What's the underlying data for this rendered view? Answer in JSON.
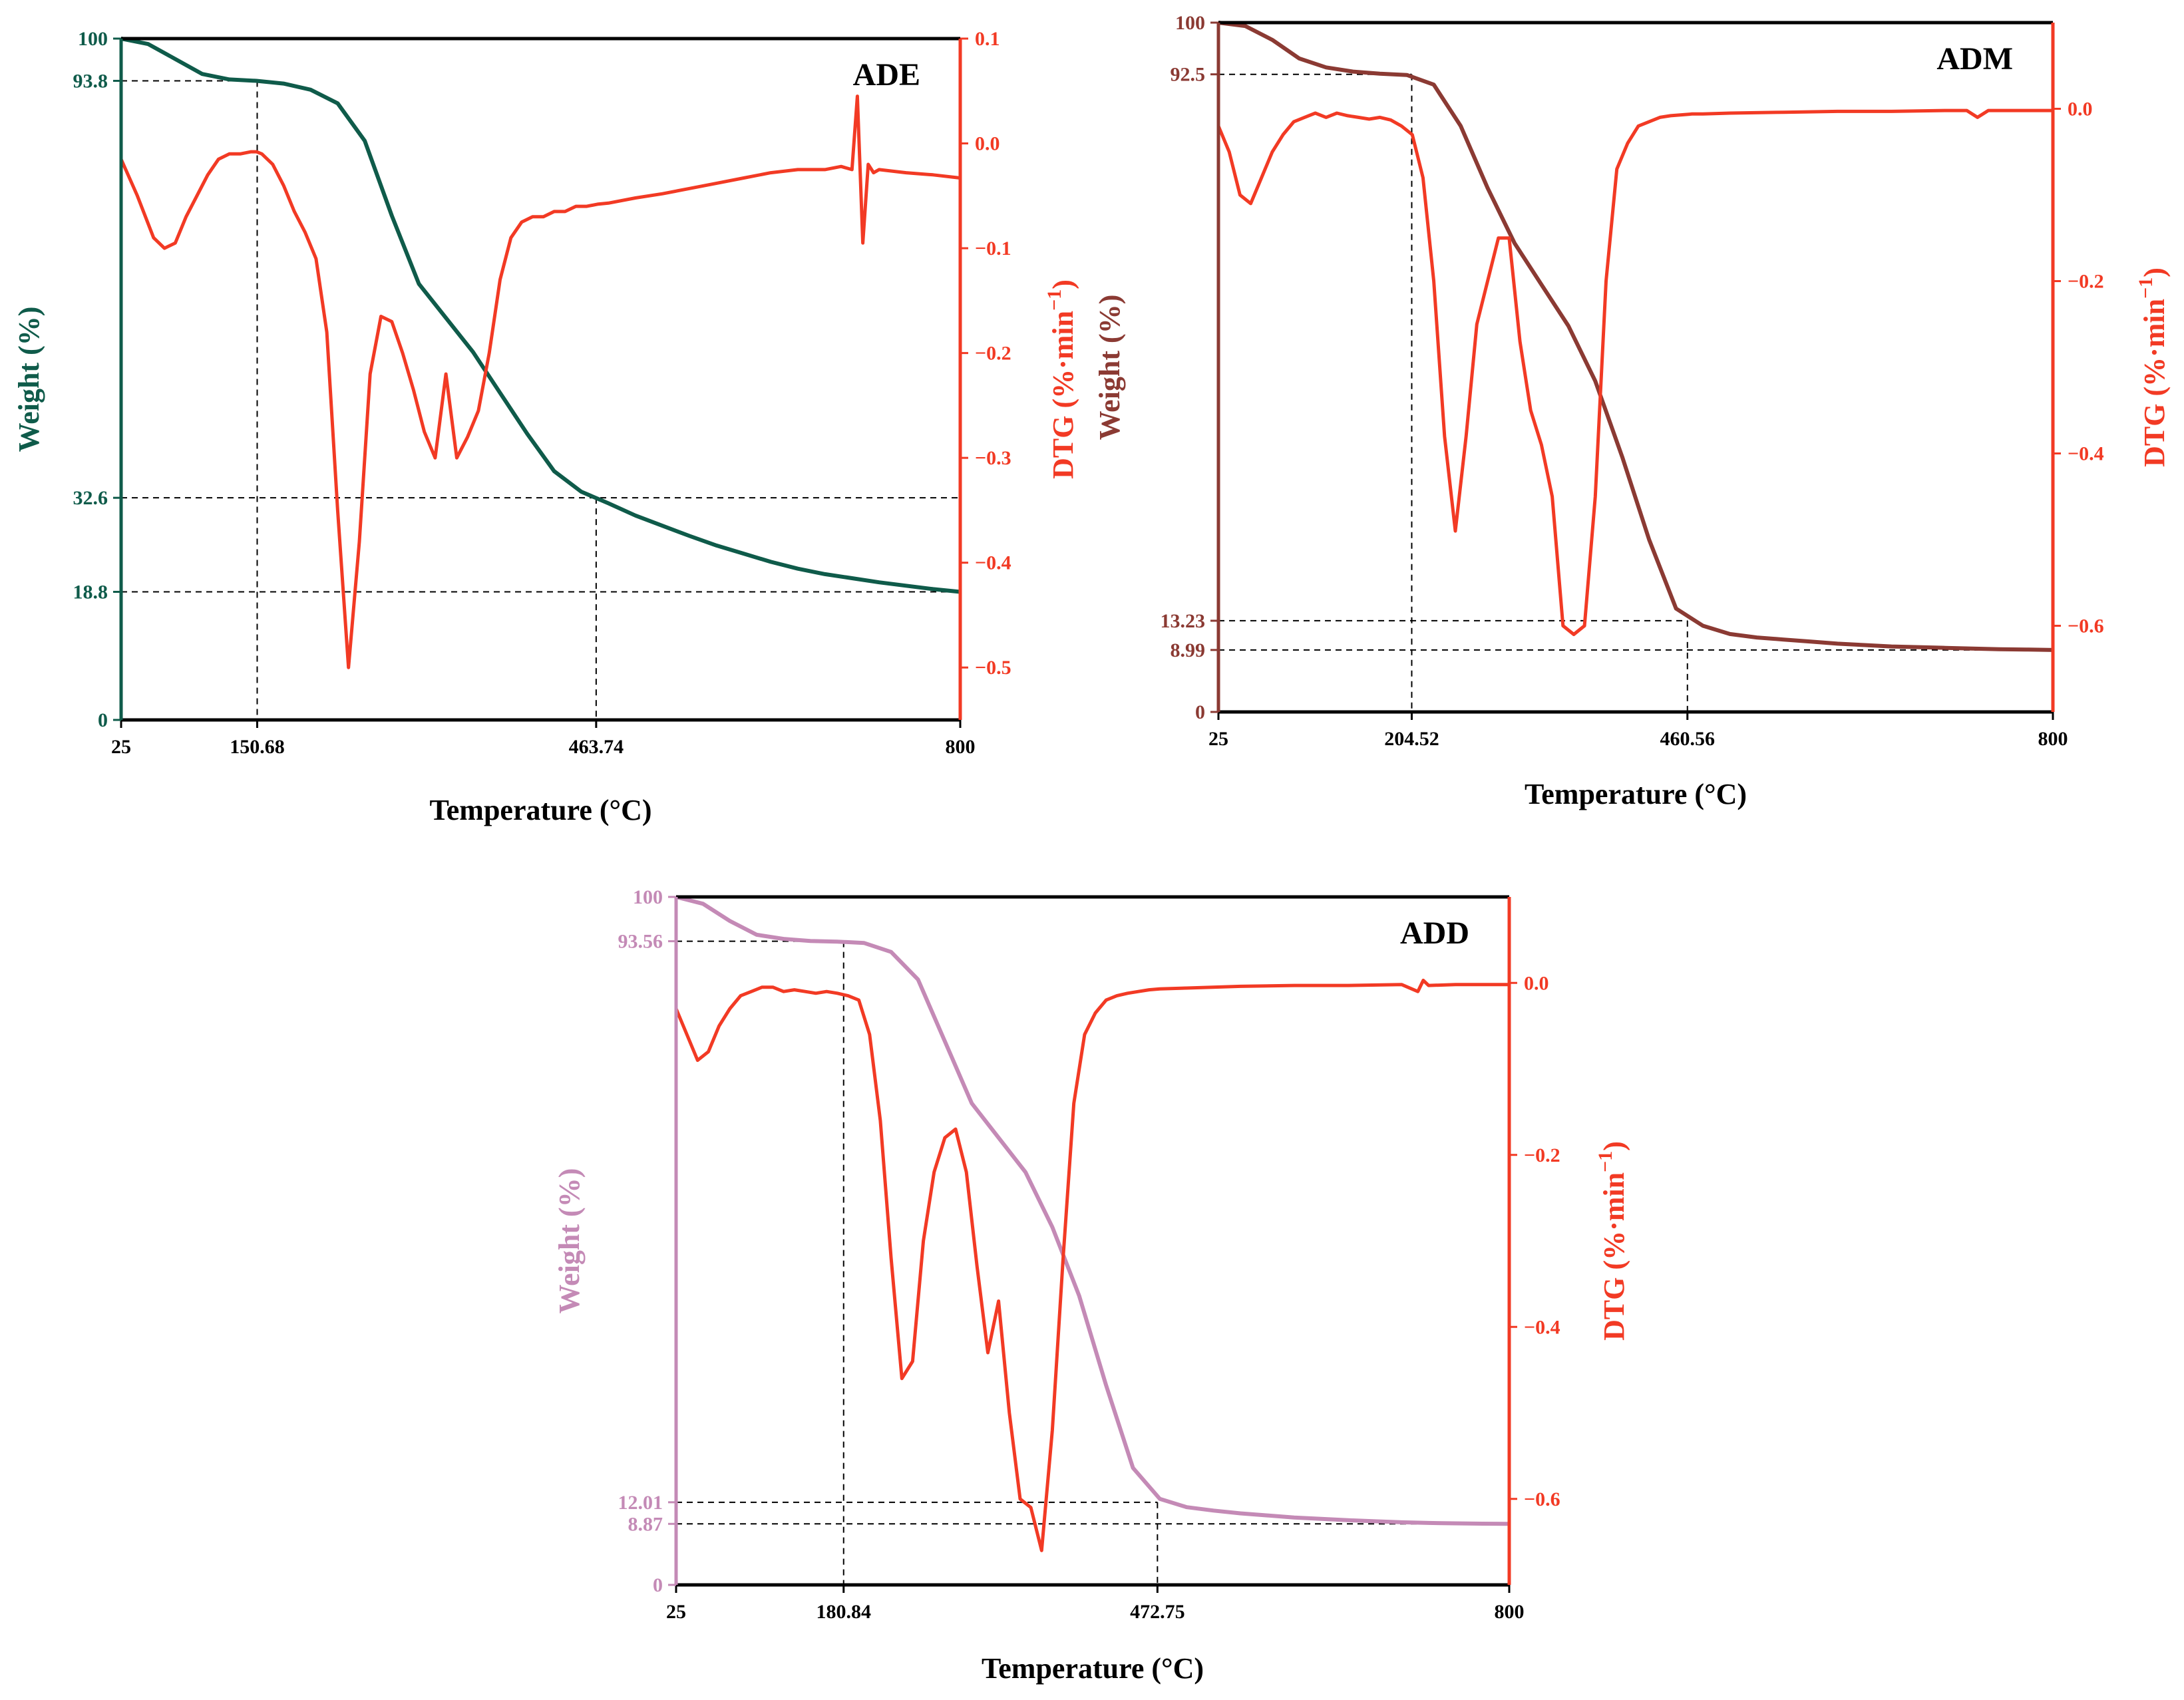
{
  "colors": {
    "dtg": "#f23a24",
    "frame": "#000000"
  },
  "chart_data": [
    {
      "type": "line",
      "panel_label": "ADE",
      "weight_color": "#0f5b4a",
      "xlabel": "Temperature (°C)",
      "ylabel_left": "Weight (%)",
      "ylabel_right_main": "DTG (%·min",
      "ylabel_right_sup": "−1",
      "ylabel_right_end": ")",
      "xlim": [
        25,
        800
      ],
      "ylim_left": [
        0,
        100
      ],
      "ylim_right": [
        -0.55,
        0.1
      ],
      "x_ticks": [
        "25",
        "150.68",
        "463.74",
        "800"
      ],
      "x_tick_values": [
        25,
        150.68,
        463.74,
        800
      ],
      "left_ticks": [
        "0",
        "18.8",
        "32.6",
        "93.8",
        "100"
      ],
      "left_tick_values": [
        0,
        18.8,
        32.6,
        93.8,
        100
      ],
      "right_ticks": [
        "0.1",
        "0.0",
        "−0.1",
        "−0.2",
        "−0.3",
        "−0.4",
        "−0.5"
      ],
      "right_tick_values": [
        0.1,
        0.0,
        -0.1,
        -0.2,
        -0.3,
        -0.4,
        -0.5
      ],
      "ref_lines": [
        {
          "t": 150.68,
          "w": 93.8,
          "extend": "left"
        },
        {
          "t": 463.74,
          "w": 32.6,
          "extend": "right"
        },
        {
          "w": 18.8,
          "full": true
        }
      ],
      "series": [
        {
          "name": "Weight",
          "x": [
            25,
            50,
            75,
            100,
            125,
            150,
            175,
            200,
            225,
            250,
            275,
            300,
            325,
            350,
            375,
            400,
            425,
            450,
            475,
            500,
            525,
            550,
            575,
            600,
            625,
            650,
            675,
            700,
            725,
            750,
            775,
            800
          ],
          "values": [
            100,
            99.2,
            97,
            94.8,
            94,
            93.8,
            93.4,
            92.5,
            90.5,
            85,
            74,
            64,
            59,
            54,
            48,
            42,
            36.5,
            33.5,
            31.8,
            30,
            28.5,
            27,
            25.6,
            24.4,
            23.2,
            22.2,
            21.4,
            20.8,
            20.2,
            19.7,
            19.2,
            18.8
          ]
        },
        {
          "name": "DTG",
          "x": [
            25,
            40,
            55,
            65,
            75,
            85,
            95,
            105,
            115,
            125,
            135,
            145,
            150,
            155,
            165,
            175,
            185,
            195,
            205,
            215,
            225,
            235,
            245,
            255,
            265,
            275,
            285,
            295,
            305,
            315,
            325,
            335,
            345,
            355,
            365,
            375,
            385,
            395,
            405,
            415,
            425,
            435,
            445,
            455,
            465,
            475,
            500,
            525,
            550,
            575,
            600,
            625,
            650,
            675,
            690,
            700,
            705,
            710,
            715,
            720,
            725,
            750,
            775,
            800
          ],
          "values": [
            -0.015,
            -0.05,
            -0.09,
            -0.1,
            -0.095,
            -0.07,
            -0.05,
            -0.03,
            -0.015,
            -0.01,
            -0.01,
            -0.008,
            -0.008,
            -0.01,
            -0.02,
            -0.04,
            -0.065,
            -0.085,
            -0.11,
            -0.18,
            -0.35,
            -0.5,
            -0.38,
            -0.22,
            -0.165,
            -0.17,
            -0.2,
            -0.235,
            -0.275,
            -0.3,
            -0.22,
            -0.3,
            -0.28,
            -0.255,
            -0.2,
            -0.13,
            -0.09,
            -0.075,
            -0.07,
            -0.07,
            -0.065,
            -0.065,
            -0.06,
            -0.06,
            -0.058,
            -0.057,
            -0.052,
            -0.048,
            -0.043,
            -0.038,
            -0.033,
            -0.028,
            -0.025,
            -0.025,
            -0.022,
            -0.025,
            0.045,
            -0.095,
            -0.02,
            -0.028,
            -0.025,
            -0.028,
            -0.03,
            -0.033
          ]
        }
      ]
    },
    {
      "type": "line",
      "panel_label": "ADM",
      "weight_color": "#8b3a33",
      "xlabel": "Temperature (°C)",
      "ylabel_left": "Weight (%)",
      "ylabel_right_main": "DTG (%·min",
      "ylabel_right_sup": "−1",
      "ylabel_right_end": ")",
      "xlim": [
        25,
        800
      ],
      "ylim_left": [
        0,
        100
      ],
      "ylim_right": [
        -0.7,
        0.1
      ],
      "x_ticks": [
        "25",
        "204.52",
        "460.56",
        "800"
      ],
      "x_tick_values": [
        25,
        204.52,
        460.56,
        800
      ],
      "left_ticks": [
        "0",
        "8.99",
        "13.23",
        "92.5",
        "100"
      ],
      "left_tick_values": [
        0,
        8.99,
        13.23,
        92.5,
        100
      ],
      "right_ticks": [
        "0.0",
        "−0.2",
        "−0.4",
        "−0.6"
      ],
      "right_tick_values": [
        0.0,
        -0.2,
        -0.4,
        -0.6
      ],
      "ref_lines": [
        {
          "t": 204.52,
          "w": 92.5,
          "extend": "left"
        },
        {
          "t": 460.56,
          "w": 13.23,
          "extend": "left"
        },
        {
          "w": 8.99,
          "full": true
        }
      ],
      "series": [
        {
          "name": "Weight",
          "x": [
            25,
            50,
            75,
            100,
            125,
            150,
            175,
            200,
            225,
            250,
            275,
            300,
            325,
            350,
            375,
            400,
            425,
            450,
            475,
            500,
            525,
            550,
            575,
            600,
            625,
            650,
            675,
            700,
            725,
            750,
            775,
            800
          ],
          "values": [
            100,
            99.5,
            97.5,
            94.8,
            93.5,
            92.9,
            92.6,
            92.4,
            91,
            85,
            76,
            68,
            62,
            56,
            48,
            37,
            25,
            15,
            12.5,
            11.3,
            10.8,
            10.5,
            10.2,
            9.9,
            9.7,
            9.5,
            9.4,
            9.3,
            9.2,
            9.1,
            9.05,
            8.99
          ]
        },
        {
          "name": "DTG",
          "x": [
            25,
            35,
            45,
            55,
            65,
            75,
            85,
            95,
            105,
            115,
            125,
            135,
            145,
            155,
            165,
            175,
            185,
            195,
            205,
            215,
            225,
            235,
            245,
            255,
            265,
            275,
            285,
            295,
            305,
            315,
            325,
            335,
            345,
            355,
            365,
            375,
            385,
            395,
            405,
            415,
            425,
            435,
            445,
            455,
            465,
            475,
            500,
            550,
            600,
            650,
            700,
            720,
            730,
            740,
            750,
            775,
            800
          ],
          "values": [
            -0.02,
            -0.05,
            -0.1,
            -0.11,
            -0.08,
            -0.05,
            -0.03,
            -0.015,
            -0.01,
            -0.005,
            -0.01,
            -0.005,
            -0.008,
            -0.01,
            -0.012,
            -0.01,
            -0.013,
            -0.02,
            -0.03,
            -0.08,
            -0.2,
            -0.38,
            -0.49,
            -0.38,
            -0.25,
            -0.2,
            -0.15,
            -0.15,
            -0.27,
            -0.35,
            -0.39,
            -0.45,
            -0.6,
            -0.61,
            -0.6,
            -0.45,
            -0.2,
            -0.07,
            -0.04,
            -0.02,
            -0.015,
            -0.01,
            -0.008,
            -0.007,
            -0.006,
            -0.006,
            -0.005,
            -0.004,
            -0.003,
            -0.003,
            -0.002,
            -0.002,
            -0.01,
            -0.002,
            -0.002,
            -0.002,
            -0.002
          ]
        }
      ]
    },
    {
      "type": "line",
      "panel_label": "ADD",
      "weight_color": "#c48ab6",
      "xlabel": "Temperature (°C)",
      "ylabel_left": "Weight (%)",
      "ylabel_right_main": "DTG (%·min",
      "ylabel_right_sup": "−1",
      "ylabel_right_end": ")",
      "xlim": [
        25,
        800
      ],
      "ylim_left": [
        0,
        100
      ],
      "ylim_right": [
        -0.7,
        0.1
      ],
      "x_ticks": [
        "25",
        "180.84",
        "472.75",
        "800"
      ],
      "x_tick_values": [
        25,
        180.84,
        472.75,
        800
      ],
      "left_ticks": [
        "0",
        "8.87",
        "12.01",
        "93.56",
        "100"
      ],
      "left_tick_values": [
        0,
        8.87,
        12.01,
        93.56,
        100
      ],
      "right_ticks": [
        "0.0",
        "−0.2",
        "−0.4",
        "−0.6"
      ],
      "right_tick_values": [
        0.0,
        -0.2,
        -0.4,
        -0.6
      ],
      "ref_lines": [
        {
          "t": 180.84,
          "w": 93.56,
          "extend": "left"
        },
        {
          "t": 472.75,
          "w": 12.01,
          "extend": "left"
        },
        {
          "w": 8.87,
          "full": true
        }
      ],
      "series": [
        {
          "name": "Weight",
          "x": [
            25,
            50,
            75,
            100,
            125,
            150,
            175,
            200,
            225,
            250,
            275,
            300,
            325,
            350,
            375,
            400,
            425,
            450,
            475,
            500,
            525,
            550,
            575,
            600,
            625,
            650,
            675,
            700,
            725,
            750,
            775,
            800
          ],
          "values": [
            100,
            99,
            96.5,
            94.5,
            93.9,
            93.6,
            93.5,
            93.3,
            92,
            88,
            79,
            70,
            65,
            60,
            52,
            42,
            29,
            17,
            12.5,
            11.3,
            10.8,
            10.4,
            10.1,
            9.8,
            9.6,
            9.4,
            9.25,
            9.1,
            9,
            8.95,
            8.9,
            8.87
          ]
        },
        {
          "name": "DTG",
          "x": [
            25,
            35,
            45,
            55,
            65,
            75,
            85,
            95,
            105,
            115,
            125,
            135,
            145,
            155,
            165,
            175,
            185,
            195,
            205,
            215,
            225,
            235,
            245,
            255,
            265,
            275,
            285,
            295,
            305,
            315,
            325,
            335,
            345,
            355,
            365,
            375,
            385,
            395,
            405,
            415,
            425,
            435,
            445,
            455,
            465,
            475,
            500,
            550,
            600,
            650,
            700,
            715,
            720,
            725,
            750,
            800
          ],
          "values": [
            -0.03,
            -0.06,
            -0.09,
            -0.08,
            -0.05,
            -0.03,
            -0.015,
            -0.01,
            -0.005,
            -0.005,
            -0.01,
            -0.008,
            -0.01,
            -0.012,
            -0.01,
            -0.012,
            -0.015,
            -0.02,
            -0.06,
            -0.16,
            -0.32,
            -0.46,
            -0.44,
            -0.3,
            -0.22,
            -0.18,
            -0.17,
            -0.22,
            -0.33,
            -0.43,
            -0.37,
            -0.5,
            -0.6,
            -0.61,
            -0.66,
            -0.52,
            -0.32,
            -0.14,
            -0.06,
            -0.035,
            -0.02,
            -0.015,
            -0.012,
            -0.01,
            -0.008,
            -0.007,
            -0.006,
            -0.004,
            -0.003,
            -0.003,
            -0.002,
            -0.01,
            0.003,
            -0.003,
            -0.002,
            -0.002
          ]
        }
      ]
    }
  ]
}
